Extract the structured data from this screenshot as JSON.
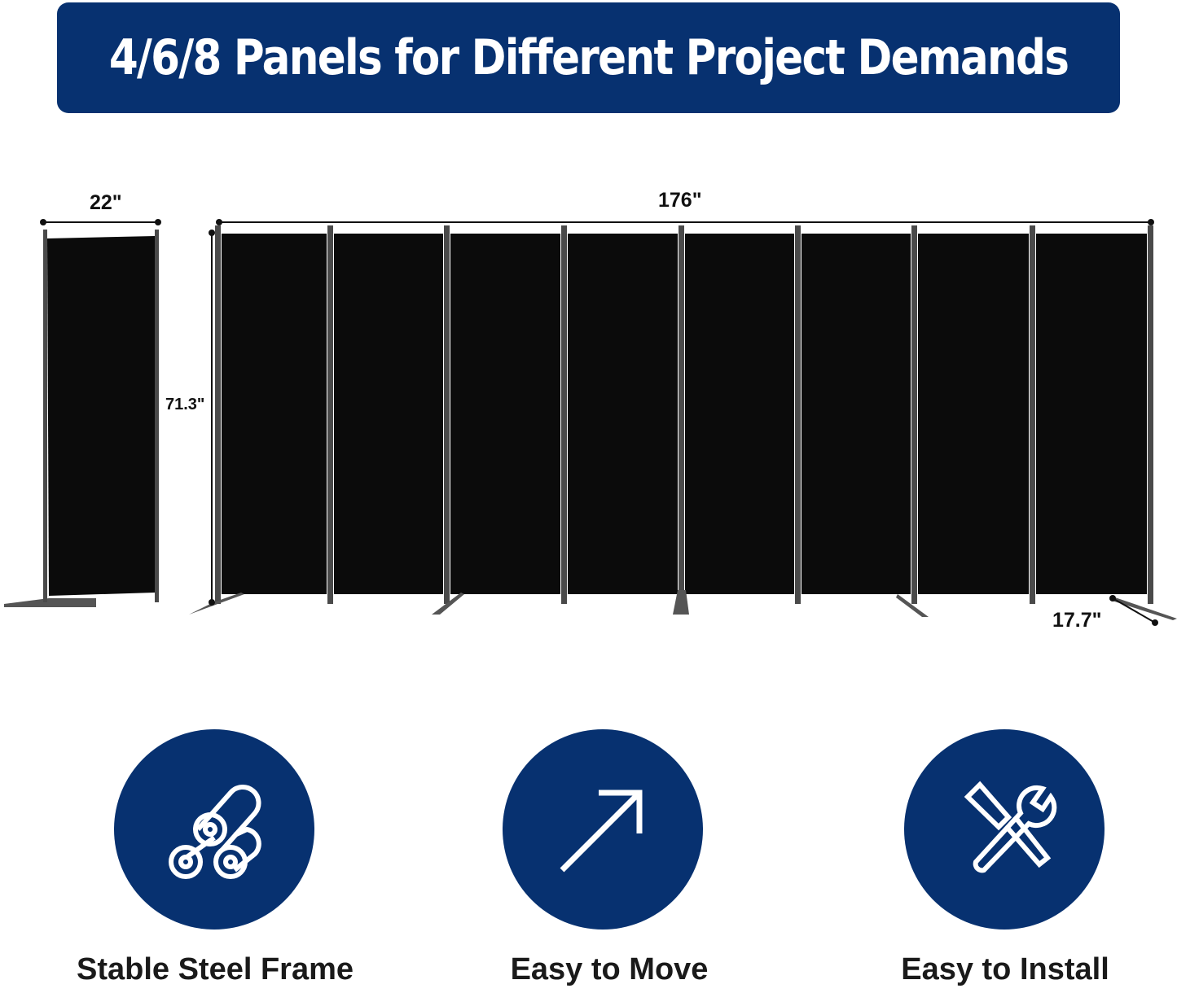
{
  "banner": {
    "title": "4/6/8 Panels for Different Project Demands"
  },
  "dimensions": {
    "single_width": "22\"",
    "height": "71.3\"",
    "total_width": "176\"",
    "foot_depth": "17.7\""
  },
  "features": [
    {
      "label": "Stable Steel Frame",
      "icon": "steel-rolls-icon"
    },
    {
      "label": "Easy to Move",
      "icon": "arrow-up-right-icon"
    },
    {
      "label": "Easy to Install",
      "icon": "wrench-screwdriver-icon"
    }
  ],
  "colors": {
    "brand_blue": "#073170",
    "panel": "#0b0b0b",
    "frame": "#4a4a4a"
  }
}
